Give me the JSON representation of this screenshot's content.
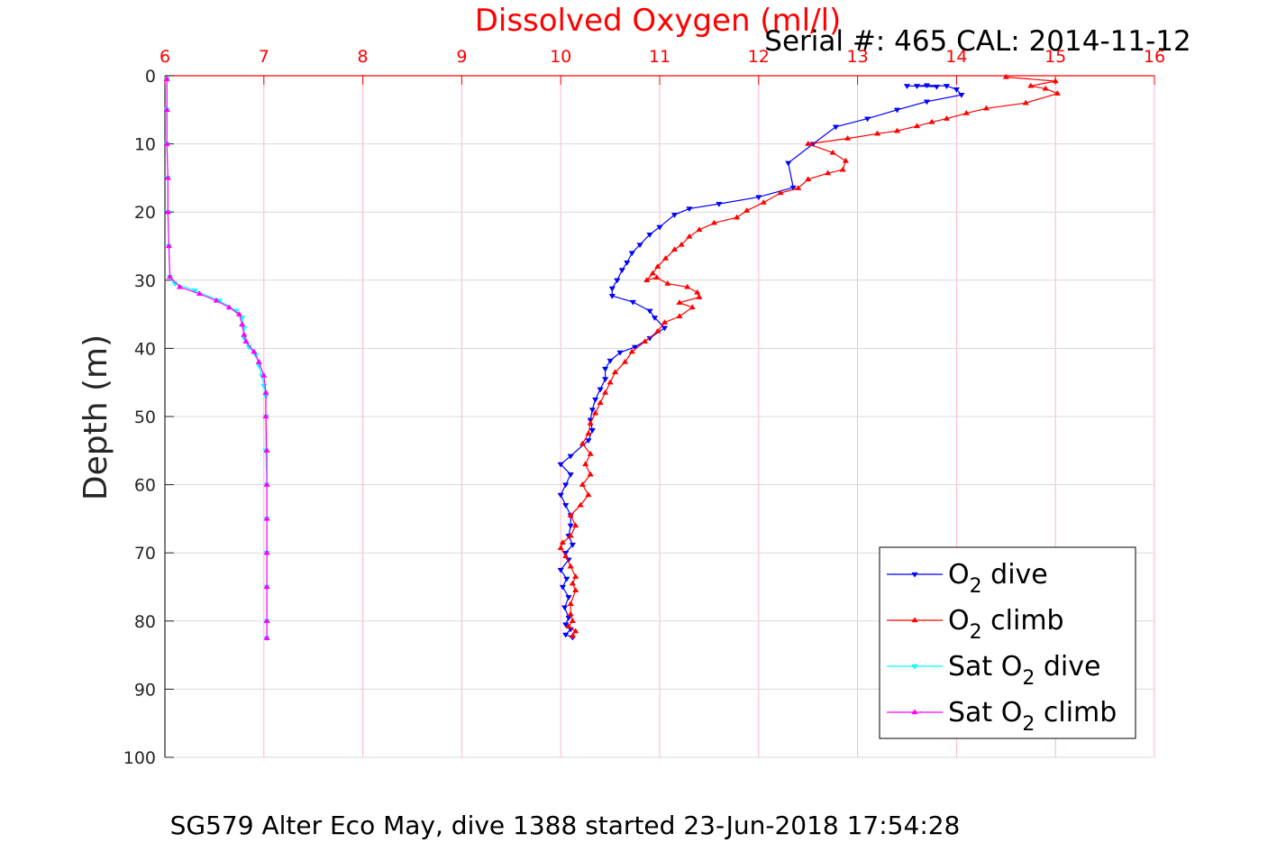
{
  "chart_data": {
    "type": "line",
    "title": "Dissolved Oxygen (ml/l)",
    "subtitle": "Serial #: 465  CAL: 2014-11-12",
    "ylabel": "Depth (m)",
    "caption": "SG579 Alter Eco May, dive 1388 started 23-Jun-2018 17:54:28",
    "x_ticks": [
      "6",
      "7",
      "8",
      "9",
      "10",
      "11",
      "12",
      "13",
      "14",
      "15",
      "16"
    ],
    "y_ticks": [
      "0",
      "10",
      "20",
      "30",
      "40",
      "50",
      "60",
      "70",
      "80",
      "90",
      "100"
    ],
    "xlim": [
      6,
      16
    ],
    "ylim": [
      0,
      100
    ],
    "y_reversed": true,
    "x_axis_position": "top",
    "grid": true,
    "legend_position": "bottom-right",
    "colors": {
      "x_axis": "#ff0000",
      "grid_x": "#ffb6c1",
      "grid_y": "#d9d9d9"
    },
    "series": [
      {
        "name": "O2 dive",
        "label_main": "O",
        "label_sub": "2",
        "label_rest": " dive",
        "label_pre": "",
        "color": "#0000ff",
        "marker": "triangle-down",
        "points": [
          [
            13.5,
            1.5
          ],
          [
            13.8,
            1.6
          ],
          [
            13.6,
            1.5
          ],
          [
            13.7,
            1.4
          ],
          [
            13.9,
            1.5
          ],
          [
            14.0,
            2.0
          ],
          [
            14.05,
            2.8
          ],
          [
            13.7,
            3.8
          ],
          [
            13.4,
            5.0
          ],
          [
            13.1,
            6.3
          ],
          [
            12.78,
            7.5
          ],
          [
            12.55,
            10.0
          ],
          [
            12.3,
            12.8
          ],
          [
            12.35,
            16.4
          ],
          [
            12.0,
            17.8
          ],
          [
            11.6,
            18.8
          ],
          [
            11.3,
            19.5
          ],
          [
            11.15,
            20.4
          ],
          [
            11.0,
            22.2
          ],
          [
            10.9,
            23.3
          ],
          [
            10.8,
            24.8
          ],
          [
            10.72,
            26.0
          ],
          [
            10.67,
            27.4
          ],
          [
            10.62,
            28.5
          ],
          [
            10.57,
            30.0
          ],
          [
            10.52,
            31.2
          ],
          [
            10.52,
            32.3
          ],
          [
            10.73,
            33.2
          ],
          [
            10.9,
            34.5
          ],
          [
            10.95,
            35.5
          ],
          [
            11.05,
            37.0
          ],
          [
            10.9,
            38.5
          ],
          [
            10.75,
            39.8
          ],
          [
            10.6,
            40.6
          ],
          [
            10.5,
            41.8
          ],
          [
            10.45,
            43.0
          ],
          [
            10.45,
            44.5
          ],
          [
            10.4,
            46.0
          ],
          [
            10.35,
            47.5
          ],
          [
            10.32,
            49.0
          ],
          [
            10.3,
            50.5
          ],
          [
            10.32,
            52.0
          ],
          [
            10.28,
            53.5
          ],
          [
            10.1,
            55.8
          ],
          [
            10.0,
            57.0
          ],
          [
            10.1,
            58.5
          ],
          [
            10.05,
            60.0
          ],
          [
            10.0,
            61.5
          ],
          [
            10.05,
            63.0
          ],
          [
            10.1,
            64.5
          ],
          [
            10.1,
            66.0
          ],
          [
            10.08,
            67.5
          ],
          [
            10.12,
            68.8
          ],
          [
            10.05,
            70.0
          ],
          [
            10.08,
            71.0
          ],
          [
            10.0,
            72.5
          ],
          [
            10.06,
            73.8
          ],
          [
            10.02,
            75.0
          ],
          [
            10.08,
            76.5
          ],
          [
            10.04,
            78.0
          ],
          [
            10.08,
            79.5
          ],
          [
            10.05,
            80.5
          ],
          [
            10.1,
            81.2
          ],
          [
            10.05,
            82.0
          ],
          [
            10.12,
            82.4
          ]
        ]
      },
      {
        "name": "O2 climb",
        "label_main": "O",
        "label_sub": "2",
        "label_rest": " climb",
        "label_pre": "",
        "color": "#ff0000",
        "marker": "triangle-up",
        "points": [
          [
            14.5,
            0.2
          ],
          [
            15.0,
            0.8
          ],
          [
            14.75,
            1.5
          ],
          [
            14.9,
            1.9
          ],
          [
            15.02,
            2.6
          ],
          [
            14.7,
            4.0
          ],
          [
            14.3,
            4.8
          ],
          [
            14.1,
            5.5
          ],
          [
            13.9,
            6.3
          ],
          [
            13.75,
            6.8
          ],
          [
            13.6,
            7.4
          ],
          [
            13.4,
            8.1
          ],
          [
            13.2,
            8.5
          ],
          [
            12.9,
            9.2
          ],
          [
            12.5,
            10.0
          ],
          [
            12.75,
            11.3
          ],
          [
            12.88,
            12.5
          ],
          [
            12.85,
            13.8
          ],
          [
            12.7,
            14.3
          ],
          [
            12.5,
            15.2
          ],
          [
            12.4,
            16.5
          ],
          [
            12.22,
            17.2
          ],
          [
            12.05,
            18.6
          ],
          [
            11.88,
            19.8
          ],
          [
            11.78,
            20.8
          ],
          [
            11.55,
            21.6
          ],
          [
            11.4,
            22.6
          ],
          [
            11.3,
            23.6
          ],
          [
            11.22,
            24.8
          ],
          [
            11.15,
            25.5
          ],
          [
            11.06,
            26.8
          ],
          [
            10.98,
            28.0
          ],
          [
            10.93,
            29.0
          ],
          [
            10.87,
            30.0
          ],
          [
            10.97,
            29.6
          ],
          [
            11.08,
            30.5
          ],
          [
            11.28,
            31.0
          ],
          [
            11.38,
            31.8
          ],
          [
            11.4,
            32.5
          ],
          [
            11.2,
            33.3
          ],
          [
            11.33,
            34.0
          ],
          [
            11.2,
            35.3
          ],
          [
            11.05,
            36.2
          ],
          [
            10.98,
            37.5
          ],
          [
            10.85,
            39.0
          ],
          [
            10.72,
            40.5
          ],
          [
            10.65,
            42.0
          ],
          [
            10.55,
            43.5
          ],
          [
            10.5,
            45.0
          ],
          [
            10.45,
            46.5
          ],
          [
            10.4,
            48.0
          ],
          [
            10.35,
            49.5
          ],
          [
            10.3,
            51.0
          ],
          [
            10.28,
            52.5
          ],
          [
            10.22,
            54.0
          ],
          [
            10.3,
            55.5
          ],
          [
            10.25,
            57.0
          ],
          [
            10.3,
            58.5
          ],
          [
            10.22,
            60.0
          ],
          [
            10.28,
            61.5
          ],
          [
            10.2,
            63.0
          ],
          [
            10.1,
            64.5
          ],
          [
            10.15,
            66.0
          ],
          [
            10.1,
            67.5
          ],
          [
            10.02,
            68.5
          ],
          [
            10.0,
            69.3
          ],
          [
            10.05,
            70.5
          ],
          [
            10.1,
            72.0
          ],
          [
            10.15,
            73.5
          ],
          [
            10.12,
            74.5
          ],
          [
            10.15,
            75.5
          ],
          [
            10.1,
            77.5
          ],
          [
            10.1,
            79.0
          ],
          [
            10.12,
            80.0
          ],
          [
            10.08,
            80.8
          ],
          [
            10.15,
            81.5
          ],
          [
            10.12,
            82.2
          ]
        ]
      },
      {
        "name": "Sat O2 dive",
        "label_main": "O",
        "label_sub": "2",
        "label_rest": " dive",
        "label_pre": "Sat ",
        "color": "#00ffff",
        "marker": "triangle-down",
        "points": [
          [
            6.02,
            0.5
          ],
          [
            6.02,
            5
          ],
          [
            6.02,
            10
          ],
          [
            6.03,
            15
          ],
          [
            6.03,
            20
          ],
          [
            6.04,
            25
          ],
          [
            6.05,
            29.5
          ],
          [
            6.1,
            30.5
          ],
          [
            6.3,
            31.5
          ],
          [
            6.55,
            33
          ],
          [
            6.72,
            34.5
          ],
          [
            6.78,
            35.5
          ],
          [
            6.8,
            37
          ],
          [
            6.8,
            38.5
          ],
          [
            6.85,
            39.8
          ],
          [
            6.92,
            41
          ],
          [
            6.95,
            42.5
          ],
          [
            6.98,
            44
          ],
          [
            7.0,
            45.5
          ],
          [
            7.02,
            47
          ],
          [
            7.02,
            50
          ],
          [
            7.02,
            55
          ],
          [
            7.03,
            60
          ],
          [
            7.03,
            65
          ],
          [
            7.03,
            70
          ],
          [
            7.03,
            75
          ],
          [
            7.03,
            80
          ],
          [
            7.03,
            82.5
          ]
        ]
      },
      {
        "name": "Sat O2 climb",
        "label_main": "O",
        "label_sub": "2",
        "label_rest": " climb",
        "label_pre": "Sat ",
        "color": "#ff00ff",
        "marker": "triangle-up",
        "points": [
          [
            6.02,
            0.5
          ],
          [
            6.02,
            5
          ],
          [
            6.02,
            10
          ],
          [
            6.03,
            15
          ],
          [
            6.03,
            20
          ],
          [
            6.04,
            25
          ],
          [
            6.05,
            29.5
          ],
          [
            6.15,
            31.0
          ],
          [
            6.35,
            32.0
          ],
          [
            6.52,
            33.0
          ],
          [
            6.65,
            34.0
          ],
          [
            6.75,
            35.0
          ],
          [
            6.78,
            36.5
          ],
          [
            6.8,
            38.0
          ],
          [
            6.82,
            39.0
          ],
          [
            6.9,
            40.5
          ],
          [
            6.95,
            42.0
          ],
          [
            7.0,
            44.0
          ],
          [
            7.02,
            46.5
          ],
          [
            7.02,
            50
          ],
          [
            7.03,
            55
          ],
          [
            7.03,
            60
          ],
          [
            7.03,
            65
          ],
          [
            7.03,
            70
          ],
          [
            7.03,
            75
          ],
          [
            7.03,
            80
          ],
          [
            7.03,
            82.5
          ]
        ]
      }
    ]
  }
}
